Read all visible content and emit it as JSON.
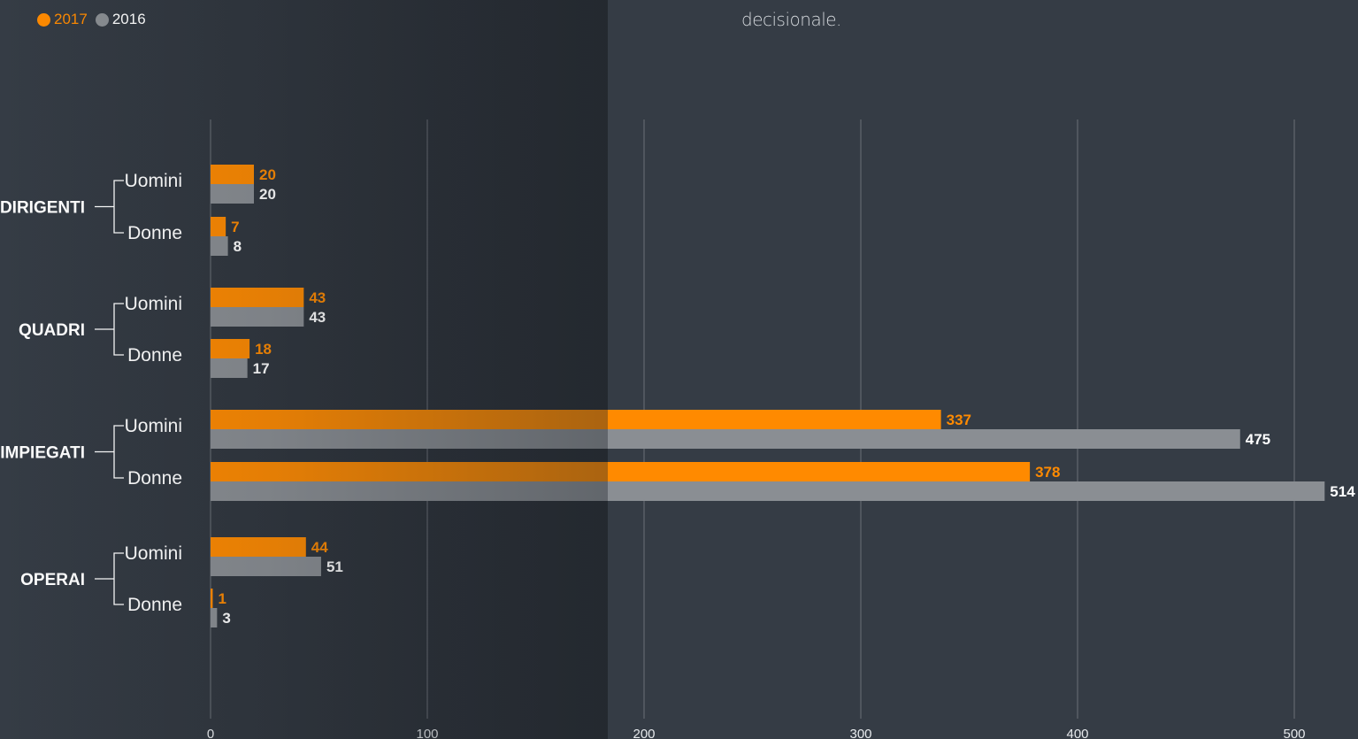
{
  "header": {
    "text": "decisionale."
  },
  "legend": [
    {
      "label": "2017",
      "color": "#ff8a00"
    },
    {
      "label": "2016",
      "color": "#8a8e93"
    }
  ],
  "chart_data": {
    "type": "bar",
    "orientation": "horizontal",
    "xlim": [
      0,
      520
    ],
    "xticks": [
      0,
      100,
      200,
      300,
      400,
      500
    ],
    "grid": true,
    "series": [
      {
        "name": "2017",
        "color": "#ff8a00"
      },
      {
        "name": "2016",
        "color": "#8a8e93"
      }
    ],
    "groups": [
      {
        "category": "DIRIGENTI",
        "rows": [
          {
            "label": "Uomini",
            "values": [
              20,
              20
            ]
          },
          {
            "label": "Donne",
            "values": [
              7,
              8
            ]
          }
        ]
      },
      {
        "category": "QUADRI",
        "rows": [
          {
            "label": "Uomini",
            "values": [
              43,
              43
            ]
          },
          {
            "label": "Donne",
            "values": [
              18,
              17
            ]
          }
        ]
      },
      {
        "category": "IMPIEGATI",
        "rows": [
          {
            "label": "Uomini",
            "values": [
              337,
              475
            ]
          },
          {
            "label": "Donne",
            "values": [
              378,
              514
            ]
          }
        ]
      },
      {
        "category": "OPERAI",
        "rows": [
          {
            "label": "Uomini",
            "values": [
              44,
              51
            ]
          },
          {
            "label": "Donne",
            "values": [
              1,
              3
            ]
          }
        ]
      }
    ]
  }
}
